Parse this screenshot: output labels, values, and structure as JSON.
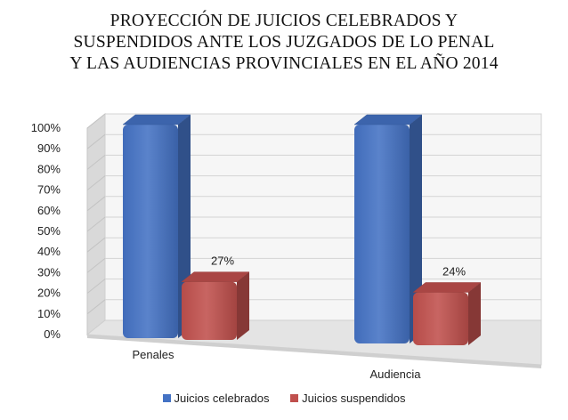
{
  "chart_data": {
    "type": "bar",
    "title_lines": [
      "PROYECCIÓN DE JUICIOS CELEBRADOS Y",
      "SUSPENDIDOS ANTE LOS JUZGADOS DE LO PENAL",
      "Y LAS AUDIENCIAS PROVINCIALES EN EL AÑO 2014"
    ],
    "categories": [
      "Penales",
      "Audiencia"
    ],
    "series": [
      {
        "name": "Juicios celebrados",
        "values": [
          100,
          100
        ],
        "color": "#4472C4",
        "data_labels": [
          "",
          ""
        ]
      },
      {
        "name": "Juicios suspendidos",
        "values": [
          27,
          24
        ],
        "color": "#C0504D",
        "data_labels": [
          "27%",
          "24%"
        ]
      }
    ],
    "y_ticks": [
      "0%",
      "10%",
      "20%",
      "30%",
      "40%",
      "50%",
      "60%",
      "70%",
      "80%",
      "90%",
      "100%"
    ],
    "ylim": [
      0,
      100
    ],
    "grid": true,
    "legend_position": "bottom",
    "style": "3d-column"
  }
}
